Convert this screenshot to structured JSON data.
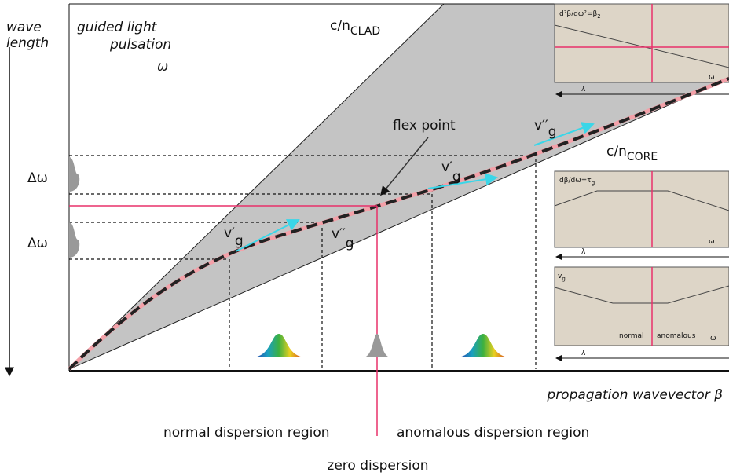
{
  "axis": {
    "vertical": [
      "wave",
      "length"
    ],
    "horizontal": "propagation wavevector β"
  },
  "left_label": [
    "guided light",
    "pulsation",
    "ω"
  ],
  "lines": {
    "clad": {
      "base": "c/n",
      "sub": "CLAD"
    },
    "core": {
      "base": "c/n",
      "sub": "CORE"
    }
  },
  "flex_point": "flex point",
  "delta_omega": [
    "Δω",
    "Δω"
  ],
  "velocities": [
    {
      "base": "v′",
      "sub": "g"
    },
    {
      "base": "v′′",
      "sub": "g"
    },
    {
      "base": "v′",
      "sub": "g"
    },
    {
      "base": "v′′",
      "sub": "g"
    }
  ],
  "insets": [
    {
      "label": {
        "base": "d²β/dω²=β",
        "sub": "2"
      },
      "x_label": "ω",
      "arrow_label": "λ"
    },
    {
      "label": {
        "base": "dβ/dω=τ",
        "sub": "g"
      },
      "x_label": "ω",
      "arrow_label": "λ"
    },
    {
      "label": {
        "base": "v",
        "sub": "g"
      },
      "region_labels": [
        "normal",
        "anomalous"
      ],
      "x_label": "ω",
      "arrow_label": "λ"
    }
  ],
  "regions": {
    "normal": "normal dispersion region",
    "anomalous": "anomalous dispersion region",
    "zero": "zero dispersion"
  }
}
